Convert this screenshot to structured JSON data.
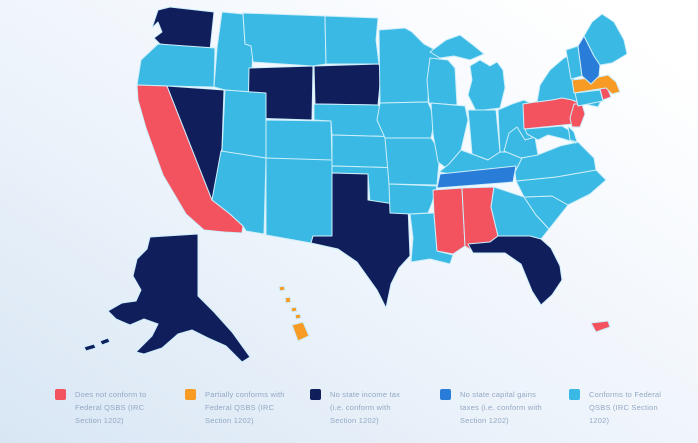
{
  "background": {
    "top": "#ffffff",
    "bottom": "#d8e6f4"
  },
  "map": {
    "border_color": "#cdeefb",
    "status_colors": {
      "not_conform": "#f2535f",
      "partial": "#f89b25",
      "no_income_tax": "#101f5c",
      "no_cap_gains": "#2a7cd9",
      "conforms": "#39b9e3"
    },
    "states": [
      {
        "code": "WA",
        "name": "Washington",
        "status": "no_income_tax"
      },
      {
        "code": "OR",
        "name": "Oregon",
        "status": "conforms"
      },
      {
        "code": "CA",
        "name": "California",
        "status": "not_conform"
      },
      {
        "code": "NV",
        "name": "Nevada",
        "status": "no_income_tax"
      },
      {
        "code": "ID",
        "name": "Idaho",
        "status": "conforms"
      },
      {
        "code": "MT",
        "name": "Montana",
        "status": "conforms"
      },
      {
        "code": "WY",
        "name": "Wyoming",
        "status": "no_income_tax"
      },
      {
        "code": "UT",
        "name": "Utah",
        "status": "conforms"
      },
      {
        "code": "CO",
        "name": "Colorado",
        "status": "conforms"
      },
      {
        "code": "AZ",
        "name": "Arizona",
        "status": "conforms"
      },
      {
        "code": "NM",
        "name": "New Mexico",
        "status": "conforms"
      },
      {
        "code": "ND",
        "name": "North Dakota",
        "status": "conforms"
      },
      {
        "code": "SD",
        "name": "South Dakota",
        "status": "no_income_tax"
      },
      {
        "code": "NE",
        "name": "Nebraska",
        "status": "conforms"
      },
      {
        "code": "KS",
        "name": "Kansas",
        "status": "conforms"
      },
      {
        "code": "OK",
        "name": "Oklahoma",
        "status": "conforms"
      },
      {
        "code": "TX",
        "name": "Texas",
        "status": "no_income_tax"
      },
      {
        "code": "MN",
        "name": "Minnesota",
        "status": "conforms"
      },
      {
        "code": "IA",
        "name": "Iowa",
        "status": "conforms"
      },
      {
        "code": "MO",
        "name": "Missouri",
        "status": "conforms"
      },
      {
        "code": "AR",
        "name": "Arkansas",
        "status": "conforms"
      },
      {
        "code": "LA",
        "name": "Louisiana",
        "status": "conforms"
      },
      {
        "code": "WI",
        "name": "Wisconsin",
        "status": "conforms"
      },
      {
        "code": "IL",
        "name": "Illinois",
        "status": "conforms"
      },
      {
        "code": "MI",
        "name": "Michigan",
        "status": "conforms"
      },
      {
        "code": "IN",
        "name": "Indiana",
        "status": "conforms"
      },
      {
        "code": "OH",
        "name": "Ohio",
        "status": "conforms"
      },
      {
        "code": "KY",
        "name": "Kentucky",
        "status": "conforms"
      },
      {
        "code": "TN",
        "name": "Tennessee",
        "status": "no_cap_gains"
      },
      {
        "code": "MS",
        "name": "Mississippi",
        "status": "not_conform"
      },
      {
        "code": "AL",
        "name": "Alabama",
        "status": "not_conform"
      },
      {
        "code": "GA",
        "name": "Georgia",
        "status": "conforms"
      },
      {
        "code": "FL",
        "name": "Florida",
        "status": "no_income_tax"
      },
      {
        "code": "SC",
        "name": "South Carolina",
        "status": "conforms"
      },
      {
        "code": "NC",
        "name": "North Carolina",
        "status": "conforms"
      },
      {
        "code": "VA",
        "name": "Virginia",
        "status": "conforms"
      },
      {
        "code": "WV",
        "name": "West Virginia",
        "status": "conforms"
      },
      {
        "code": "MD",
        "name": "Maryland",
        "status": "conforms"
      },
      {
        "code": "DE",
        "name": "Delaware",
        "status": "conforms"
      },
      {
        "code": "PA",
        "name": "Pennsylvania",
        "status": "not_conform"
      },
      {
        "code": "NJ",
        "name": "New Jersey",
        "status": "not_conform"
      },
      {
        "code": "NY",
        "name": "New York",
        "status": "conforms"
      },
      {
        "code": "CT",
        "name": "Connecticut",
        "status": "conforms"
      },
      {
        "code": "RI",
        "name": "Rhode Island",
        "status": "not_conform"
      },
      {
        "code": "MA",
        "name": "Massachusetts",
        "status": "partial"
      },
      {
        "code": "VT",
        "name": "Vermont",
        "status": "conforms"
      },
      {
        "code": "NH",
        "name": "New Hampshire",
        "status": "no_cap_gains"
      },
      {
        "code": "ME",
        "name": "Maine",
        "status": "conforms"
      },
      {
        "code": "AK",
        "name": "Alaska",
        "status": "no_income_tax"
      },
      {
        "code": "HI",
        "name": "Hawaii",
        "status": "partial"
      },
      {
        "code": "PR",
        "name": "Puerto Rico",
        "status": "not_conform"
      }
    ]
  },
  "legend": {
    "text_color": "#93a8c4",
    "items": [
      {
        "id": "not_conform",
        "color": "#f2535f",
        "label": "Does not conform to Federal QSBS (IRC Section 1202)",
        "lines": [
          "Does not conform to",
          "Federal QSBS (IRC",
          "Section 1202)"
        ]
      },
      {
        "id": "partial",
        "color": "#f89b25",
        "label": "Partially conforms with Federal QSBS (IRC Section 1202)",
        "lines": [
          "Partially conforms with",
          "Federal QSBS (IRC",
          "Section 1202)"
        ]
      },
      {
        "id": "no_income_tax",
        "color": "#101f5c",
        "label": "No state income tax (i.e. conform with Section 1202)",
        "lines": [
          "No state income tax",
          "(i.e. conform with",
          "Section 1202)"
        ]
      },
      {
        "id": "no_cap_gains",
        "color": "#2a7cd9",
        "label": "No state capital gains taxes (i.e. conform with Section 1202)",
        "lines": [
          "No state capital gains",
          "taxes (i.e. conform with",
          "Section 1202)"
        ]
      },
      {
        "id": "conforms",
        "color": "#39b9e3",
        "label": "Conforms to Federal QSBS (IRC Section 1202)",
        "lines": [
          "Conforms to Federal",
          "QSBS (IRC Section",
          "1202)"
        ]
      }
    ]
  }
}
